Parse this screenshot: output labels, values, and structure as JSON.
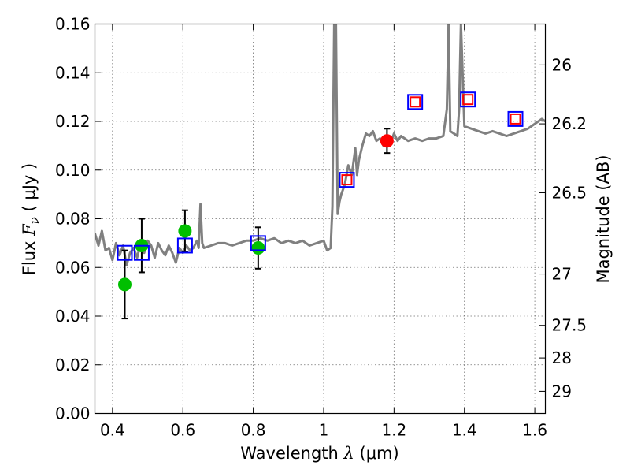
{
  "chart_data": {
    "type": "line",
    "title": "",
    "xlabel": {
      "prefix": "Wavelength  ",
      "var": "λ",
      "suffix": " (μm)"
    },
    "ylabel": {
      "prefix": "Flux  ",
      "var": "F",
      "sub": "ν",
      "suffix": "  ( μJy )"
    },
    "y2label": "Magnitude (AB)",
    "xlim": [
      0.35,
      1.63
    ],
    "ylim": [
      0.0,
      0.16
    ],
    "grid": true,
    "x_ticks": [
      {
        "value": 0.4,
        "label": "0.4"
      },
      {
        "value": 0.6,
        "label": "0.6"
      },
      {
        "value": 0.8,
        "label": "0.8"
      },
      {
        "value": 1.0,
        "label": "1"
      },
      {
        "value": 1.2,
        "label": "1.2"
      },
      {
        "value": 1.4,
        "label": "1.4"
      },
      {
        "value": 1.6,
        "label": "1.6"
      }
    ],
    "y_ticks": [
      {
        "value": 0.0,
        "label": "0.00"
      },
      {
        "value": 0.02,
        "label": "0.02"
      },
      {
        "value": 0.04,
        "label": "0.04"
      },
      {
        "value": 0.06,
        "label": "0.06"
      },
      {
        "value": 0.08,
        "label": "0.08"
      },
      {
        "value": 0.1,
        "label": "0.10"
      },
      {
        "value": 0.12,
        "label": "0.12"
      },
      {
        "value": 0.14,
        "label": "0.14"
      },
      {
        "value": 0.16,
        "label": "0.16"
      }
    ],
    "y2_ticks": [
      {
        "flux": 0.1432,
        "label": "26"
      },
      {
        "flux": 0.119,
        "label": "26.2"
      },
      {
        "flux": 0.0907,
        "label": "26.5"
      },
      {
        "flux": 0.0573,
        "label": "27"
      },
      {
        "flux": 0.0362,
        "label": "27.5"
      },
      {
        "flux": 0.0228,
        "label": "28"
      },
      {
        "flux": 0.0091,
        "label": "29"
      }
    ],
    "series": [
      {
        "name": "model-spectrum",
        "style": "line",
        "color": "#808080",
        "x": [
          0.35,
          0.36,
          0.37,
          0.38,
          0.39,
          0.4,
          0.41,
          0.42,
          0.43,
          0.44,
          0.45,
          0.46,
          0.47,
          0.48,
          0.49,
          0.5,
          0.51,
          0.52,
          0.53,
          0.54,
          0.55,
          0.56,
          0.57,
          0.58,
          0.59,
          0.6,
          0.61,
          0.62,
          0.63,
          0.64,
          0.645,
          0.65,
          0.655,
          0.66,
          0.68,
          0.7,
          0.72,
          0.74,
          0.76,
          0.78,
          0.8,
          0.82,
          0.84,
          0.86,
          0.88,
          0.9,
          0.92,
          0.94,
          0.96,
          0.98,
          1.0,
          1.01,
          1.02,
          1.025,
          1.03,
          1.035,
          1.04,
          1.045,
          1.05,
          1.06,
          1.07,
          1.08,
          1.09,
          1.095,
          1.1,
          1.11,
          1.12,
          1.13,
          1.14,
          1.15,
          1.16,
          1.17,
          1.18,
          1.19,
          1.2,
          1.21,
          1.22,
          1.23,
          1.24,
          1.26,
          1.28,
          1.3,
          1.32,
          1.34,
          1.35,
          1.355,
          1.36,
          1.37,
          1.38,
          1.385,
          1.39,
          1.4,
          1.42,
          1.44,
          1.46,
          1.48,
          1.5,
          1.52,
          1.54,
          1.56,
          1.58,
          1.6,
          1.62,
          1.63
        ],
        "y": [
          0.074,
          0.069,
          0.075,
          0.067,
          0.068,
          0.063,
          0.07,
          0.065,
          0.069,
          0.061,
          0.066,
          0.068,
          0.064,
          0.07,
          0.066,
          0.071,
          0.069,
          0.064,
          0.07,
          0.067,
          0.065,
          0.069,
          0.066,
          0.062,
          0.068,
          0.066,
          0.069,
          0.067,
          0.068,
          0.071,
          0.068,
          0.086,
          0.07,
          0.068,
          0.069,
          0.07,
          0.07,
          0.069,
          0.07,
          0.071,
          0.071,
          0.072,
          0.071,
          0.072,
          0.07,
          0.071,
          0.07,
          0.071,
          0.069,
          0.07,
          0.071,
          0.067,
          0.068,
          0.085,
          0.16,
          0.16,
          0.082,
          0.087,
          0.09,
          0.094,
          0.102,
          0.098,
          0.109,
          0.098,
          0.104,
          0.11,
          0.115,
          0.114,
          0.116,
          0.112,
          0.113,
          0.11,
          0.113,
          0.111,
          0.115,
          0.112,
          0.114,
          0.113,
          0.112,
          0.113,
          0.112,
          0.113,
          0.113,
          0.114,
          0.125,
          0.16,
          0.116,
          0.115,
          0.114,
          0.125,
          0.16,
          0.118,
          0.117,
          0.116,
          0.115,
          0.116,
          0.115,
          0.114,
          0.115,
          0.116,
          0.117,
          0.119,
          0.121,
          0.12
        ]
      },
      {
        "name": "observed-photometry",
        "style": "points",
        "color": "#00bf00",
        "x": [
          0.435,
          0.483,
          0.606,
          0.814
        ],
        "y": [
          0.053,
          0.069,
          0.075,
          0.068
        ],
        "err": [
          0.014,
          0.011,
          0.0085,
          0.0085
        ]
      },
      {
        "name": "observed-photometry-ir",
        "style": "points",
        "color": "#ff0000",
        "x": [
          1.18
        ],
        "y": [
          0.112
        ],
        "err": [
          0.005
        ]
      },
      {
        "name": "model-photometry",
        "style": "open-squares",
        "color": "#0000ff",
        "x": [
          0.435,
          0.483,
          0.606,
          0.814,
          1.066,
          1.26,
          1.41,
          1.545
        ],
        "y": [
          0.066,
          0.066,
          0.069,
          0.07,
          0.096,
          0.128,
          0.129,
          0.121
        ]
      },
      {
        "name": "model-photometry-inner",
        "style": "open-squares",
        "color": "#ff0000",
        "x": [
          1.066,
          1.26,
          1.41,
          1.545
        ],
        "y": [
          0.096,
          0.128,
          0.129,
          0.121
        ]
      }
    ]
  }
}
